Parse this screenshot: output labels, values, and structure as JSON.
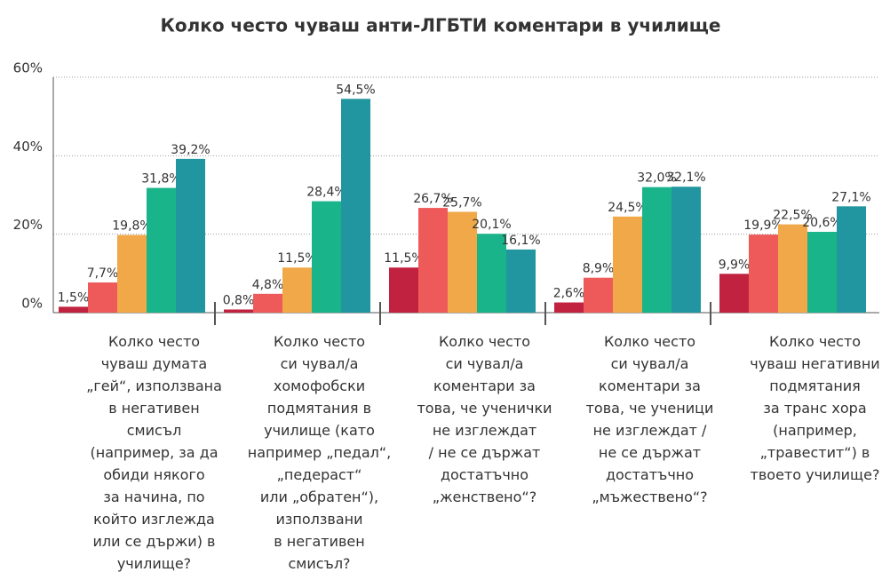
{
  "chart_data": {
    "type": "bar",
    "title": "Колко често чуваш анти-ЛГБТИ коментари в училище",
    "categories": [
      "Колко често\nчуваш думата\n„гей“, използвана\nв негативен\nсмисъл\n(например, за да\nобиди някого\nза начина, по\nкойто изглежда\nили се държи) в\nучилище?",
      "Колко често\nси чувал/а\nхомофобски\nподмятания в\nучилище (като\nнапример „педал“,\n„педераст“\nили „обратен“),\nизползвани\nв негативен\nсмисъл?",
      "Колко често\nси чувал/а\nкоментари за\nтова, че ученички\nне изглеждат\n/ не се държат\nдостатъчно\n„женствено“?",
      "Колко често\nси чувал/а\nкоментари за\nтова, че ученици\nне изглеждат /\nне се държат\nдостатъчно\n„мъжествено“?",
      "Колко често\nчуваш негативни\nподмятания\nза транс хора\n(например,\n„травестит“) в\nтвоето училище?"
    ],
    "series": [
      {
        "color": "#c0223f",
        "values": [
          1.5,
          0.8,
          11.5,
          2.6,
          9.9
        ],
        "value_labels": [
          "1,5%",
          "0,8%",
          "11,5%",
          "2,6%",
          "9,9%"
        ]
      },
      {
        "color": "#ee5a5a",
        "values": [
          7.7,
          4.8,
          26.7,
          8.9,
          19.9
        ],
        "value_labels": [
          "7,7%",
          "4,8%",
          "26,7%",
          "8,9%",
          "19,9%"
        ]
      },
      {
        "color": "#f0a848",
        "values": [
          19.8,
          11.5,
          25.7,
          24.5,
          22.5
        ],
        "value_labels": [
          "19,8%",
          "11,5%",
          "25,7%",
          "24,5%",
          "22,5%"
        ]
      },
      {
        "color": "#1ab48a",
        "values": [
          31.8,
          28.4,
          20.1,
          32.0,
          20.6
        ],
        "value_labels": [
          "31,8%",
          "28,4%",
          "20,1%",
          "32,0%",
          "20,6%"
        ]
      },
      {
        "color": "#2196a0",
        "values": [
          39.2,
          54.5,
          16.1,
          32.1,
          27.1
        ],
        "value_labels": [
          "39,2%",
          "54,5%",
          "16,1%",
          "32,1%",
          "27,1%"
        ]
      }
    ],
    "ylim": [
      0,
      60
    ],
    "yticks": [
      {
        "value": 0,
        "label": "0%"
      },
      {
        "value": 20,
        "label": "20%"
      },
      {
        "value": 40,
        "label": "40%"
      },
      {
        "value": 60,
        "label": "60%"
      }
    ],
    "grid": true
  }
}
